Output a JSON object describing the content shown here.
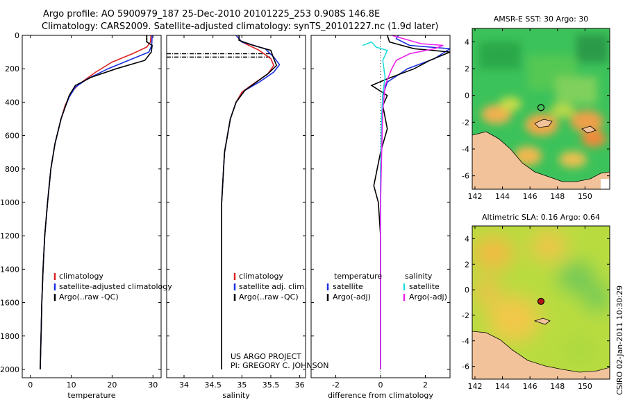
{
  "header": {
    "line1": "Argo profile: AO 5900979_187 25-Dec-2010 20101225_253 0.908S 146.8E",
    "line2": "Climatology: CARS2009. Satellite-adjusted climatology: synTS_20101227.nc (1.9d later)"
  },
  "credit": {
    "project": "US ARGO PROJECT",
    "pi": "PI: GREGORY C. JOHNSON"
  },
  "stamp": "CSIRO 02-Jan-2011 10:30:29",
  "colors": {
    "climatology": "#dd2222",
    "satellite": "#1a2edd",
    "argo": "#000000",
    "satellite_salinity": "#22dddd",
    "argo_salinity": "#ee22ee",
    "land": "#f2c39a"
  },
  "chart_data": [
    {
      "type": "line",
      "xlabel": "temperature",
      "xlim": [
        -2,
        32
      ],
      "ylim": [
        0,
        2050
      ],
      "y_inverted": true,
      "xticks": [
        0,
        10,
        20,
        30
      ],
      "yticks": [
        0,
        200,
        400,
        600,
        800,
        1000,
        1200,
        1400,
        1600,
        1800,
        2000
      ],
      "legend": [
        "climatology",
        "satellite-adjusted climatology",
        "Argo(..raw -QC)"
      ],
      "series": [
        {
          "name": "climatology",
          "points": [
            [
              29.5,
              0
            ],
            [
              29.4,
              40
            ],
            [
              28.5,
              70
            ],
            [
              25,
              110
            ],
            [
              20,
              160
            ],
            [
              16,
              220
            ],
            [
              12,
              290
            ],
            [
              10,
              340
            ],
            [
              8.5,
              420
            ],
            [
              7.5,
              500
            ],
            [
              6,
              650
            ],
            [
              5,
              800
            ],
            [
              4.2,
              1000
            ],
            [
              3.5,
              1200
            ],
            [
              3.1,
              1400
            ],
            [
              2.8,
              1600
            ],
            [
              2.6,
              1800
            ],
            [
              2.4,
              2000
            ]
          ]
        },
        {
          "name": "satellite-adjusted climatology",
          "points": [
            [
              29.8,
              0
            ],
            [
              29.7,
              60
            ],
            [
              29,
              100
            ],
            [
              25,
              140
            ],
            [
              19,
              200
            ],
            [
              14,
              260
            ],
            [
              11,
              310
            ],
            [
              9.5,
              370
            ],
            [
              8.5,
              430
            ],
            [
              7.5,
              500
            ],
            [
              6,
              650
            ],
            [
              5,
              800
            ],
            [
              4.2,
              1000
            ],
            [
              3.5,
              1200
            ],
            [
              3.1,
              1400
            ],
            [
              2.8,
              1600
            ],
            [
              2.6,
              1800
            ],
            [
              2.4,
              2000
            ]
          ]
        },
        {
          "name": "Argo(..raw -QC)",
          "points": [
            [
              28.5,
              0
            ],
            [
              28.5,
              40
            ],
            [
              29.8,
              60
            ],
            [
              29.6,
              100
            ],
            [
              28,
              150
            ],
            [
              21,
              200
            ],
            [
              15,
              250
            ],
            [
              11,
              300
            ],
            [
              9.5,
              360
            ],
            [
              8.5,
              430
            ],
            [
              7.5,
              500
            ],
            [
              6,
              650
            ],
            [
              5,
              800
            ],
            [
              4.2,
              1000
            ],
            [
              3.5,
              1200
            ],
            [
              3.1,
              1400
            ],
            [
              2.8,
              1600
            ],
            [
              2.6,
              1800
            ],
            [
              2.4,
              2000
            ]
          ]
        }
      ]
    },
    {
      "type": "line",
      "xlabel": "salinity",
      "xlim": [
        33.7,
        36.1
      ],
      "ylim": [
        0,
        2050
      ],
      "y_inverted": true,
      "xticks": [
        34,
        34.5,
        35,
        35.5,
        36
      ],
      "legend": [
        "climatology",
        "satellite adj. clim.",
        "Argo(..raw -QC)"
      ],
      "series": [
        {
          "name": "climatology",
          "points": [
            [
              34.9,
              0
            ],
            [
              35.0,
              40
            ],
            [
              35.3,
              90
            ],
            [
              35.5,
              140
            ],
            [
              35.55,
              180
            ],
            [
              35.45,
              230
            ],
            [
              35.2,
              290
            ],
            [
              35.0,
              340
            ],
            [
              34.9,
              400
            ],
            [
              34.8,
              500
            ],
            [
              34.7,
              700
            ],
            [
              34.65,
              1000
            ],
            [
              34.65,
              1500
            ],
            [
              34.65,
              2000
            ]
          ]
        },
        {
          "name": "satellite adj. clim.",
          "points": [
            [
              34.9,
              0
            ],
            [
              35.0,
              40
            ],
            [
              35.4,
              80
            ],
            [
              35.55,
              130
            ],
            [
              35.65,
              175
            ],
            [
              35.55,
              220
            ],
            [
              35.3,
              280
            ],
            [
              35.05,
              330
            ],
            [
              34.9,
              400
            ],
            [
              34.8,
              500
            ],
            [
              34.7,
              700
            ],
            [
              34.65,
              1000
            ],
            [
              34.65,
              1500
            ],
            [
              34.65,
              2000
            ]
          ]
        },
        {
          "name": "Argo(..raw -QC)",
          "points": [
            [
              34.95,
              0
            ],
            [
              34.95,
              30
            ],
            [
              35.2,
              60
            ],
            [
              35.5,
              90
            ],
            [
              35.55,
              140
            ],
            [
              35.6,
              180
            ],
            [
              35.45,
              230
            ],
            [
              35.25,
              280
            ],
            [
              35.05,
              330
            ],
            [
              34.9,
              400
            ],
            [
              34.8,
              500
            ],
            [
              34.7,
              700
            ],
            [
              34.65,
              1000
            ],
            [
              34.65,
              1500
            ],
            [
              34.65,
              2000
            ]
          ]
        }
      ]
    },
    {
      "type": "line",
      "xlabel": "difference from climatology",
      "xlim": [
        -3.1,
        3.1
      ],
      "ylim": [
        0,
        2050
      ],
      "y_inverted": true,
      "xticks": [
        -2,
        0,
        2
      ],
      "legend_groups": [
        {
          "heading": "temperature",
          "entries": [
            "satellite",
            "Argo(-adj)"
          ]
        },
        {
          "heading": "salinity",
          "entries": [
            "satellite",
            "Argo(-adj)"
          ]
        }
      ],
      "series": [
        {
          "name": "temperature satellite",
          "points": [
            [
              0.8,
              0
            ],
            [
              0.7,
              20
            ],
            [
              1.3,
              60
            ],
            [
              3.1,
              80
            ],
            [
              2.4,
              140
            ],
            [
              1.2,
              200
            ],
            [
              0.3,
              280
            ],
            [
              0.1,
              360
            ],
            [
              0.05,
              500
            ],
            [
              0,
              800
            ],
            [
              0,
              1200
            ],
            [
              0,
              2000
            ]
          ]
        },
        {
          "name": "temperature Argo(-adj)",
          "points": [
            [
              0.3,
              0
            ],
            [
              0.4,
              40
            ],
            [
              1.5,
              80
            ],
            [
              3.1,
              100
            ],
            [
              2.2,
              150
            ],
            [
              1.5,
              200
            ],
            [
              0.3,
              260
            ],
            [
              -0.4,
              300
            ],
            [
              0.3,
              360
            ],
            [
              0.1,
              420
            ],
            [
              0.3,
              560
            ],
            [
              0,
              700
            ],
            [
              -0.3,
              900
            ],
            [
              -0.1,
              1000
            ],
            [
              0,
              1200
            ],
            [
              0,
              2000
            ]
          ]
        },
        {
          "name": "salinity satellite",
          "points": [
            [
              -0.8,
              60
            ],
            [
              -0.4,
              40
            ],
            [
              -0.2,
              70
            ],
            [
              0.3,
              90
            ],
            [
              0.1,
              150
            ],
            [
              0.2,
              250
            ],
            [
              0.1,
              350
            ],
            [
              0.05,
              500
            ],
            [
              0,
              800
            ],
            [
              0,
              2000
            ]
          ]
        },
        {
          "name": "salinity Argo(-adj)",
          "points": [
            [
              0.5,
              0
            ],
            [
              1.8,
              50
            ],
            [
              2.8,
              60
            ],
            [
              2.4,
              80
            ],
            [
              1.3,
              110
            ],
            [
              0.7,
              150
            ],
            [
              0.5,
              200
            ],
            [
              0.2,
              300
            ],
            [
              0.1,
              450
            ],
            [
              0.05,
              700
            ],
            [
              0,
              1000
            ],
            [
              0,
              2000
            ]
          ]
        }
      ]
    },
    {
      "type": "heatmap",
      "title": "AMSR-E SST: 30 Argo: 30",
      "xlim": [
        141.8,
        151.8
      ],
      "ylim": [
        -7,
        5
      ],
      "xticks": [
        142,
        144,
        146,
        148,
        150
      ],
      "yticks": [
        4,
        2,
        0,
        -2,
        -4,
        -6
      ],
      "marker": {
        "lon": 146.8,
        "lat": -0.908
      }
    },
    {
      "type": "heatmap",
      "title": "Altimetric SLA: 0.16 Argo: 0.64",
      "xlim": [
        141.8,
        151.8
      ],
      "ylim": [
        -7,
        5
      ],
      "xticks": [
        142,
        144,
        146,
        148,
        150
      ],
      "yticks": [
        4,
        2,
        0,
        -2,
        -4,
        -6
      ],
      "marker": {
        "lon": 146.8,
        "lat": -0.908
      }
    }
  ]
}
